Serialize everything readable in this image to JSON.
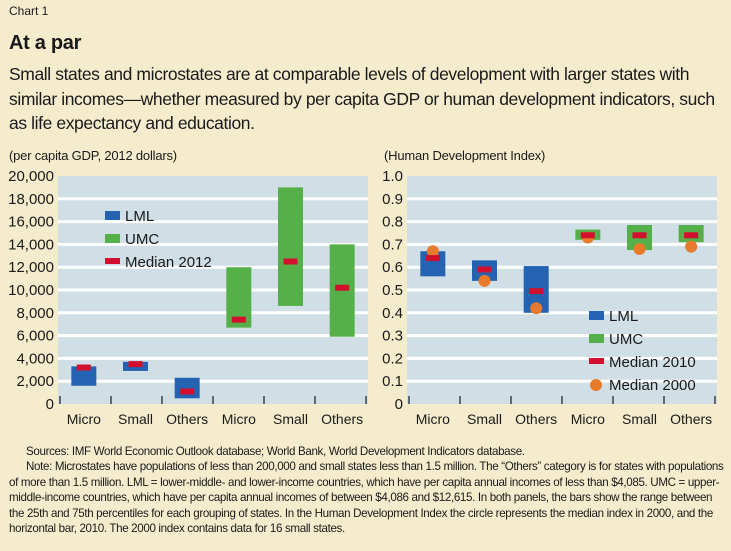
{
  "header": {
    "chart_label": "Chart 1",
    "title": "At a par",
    "subtitle": "Small states and microstates are at comparable levels of development with larger states with similar incomes—whether measured by per capita GDP or human development indicators, such as life expectancy and education."
  },
  "colors": {
    "background": "#f4eccd",
    "plot_bg": "#cfdfe5",
    "gridline": "#ffffff",
    "lml": "#2463b2",
    "umc": "#56b04a",
    "median_bar": "#d2102d",
    "median_dot": "#e87b2b"
  },
  "chart_data": [
    {
      "type": "range-bar",
      "unit_label": "(per capita GDP, 2012 dollars)",
      "ylim": [
        0,
        20000
      ],
      "yticks": [
        0,
        2000,
        4000,
        6000,
        8000,
        10000,
        12000,
        14000,
        16000,
        18000,
        20000
      ],
      "ytick_labels": [
        "0",
        "2,000",
        "4,000",
        "6,000",
        "8,000",
        "10,000",
        "12,000",
        "14,000",
        "16,000",
        "18,000",
        "20,000"
      ],
      "grid": true,
      "categories": [
        "Micro",
        "Small",
        "Others",
        "Micro",
        "Small",
        "Others"
      ],
      "legend_position": "top-left",
      "legend": [
        {
          "key": "lml",
          "label": "LML",
          "shape": "rect"
        },
        {
          "key": "umc",
          "label": "UMC",
          "shape": "rect"
        },
        {
          "key": "median",
          "label": "Median 2012",
          "shape": "bar"
        }
      ],
      "series": [
        {
          "name": "LML",
          "group": "lml",
          "p25": [
            1600,
            2900,
            500
          ],
          "p75": [
            3300,
            3700,
            2300
          ],
          "median": [
            3200,
            3500,
            1100
          ]
        },
        {
          "name": "UMC",
          "group": "umc",
          "p25": [
            6700,
            8600,
            5900
          ],
          "p75": [
            12000,
            19000,
            14000
          ],
          "median": [
            7400,
            12500,
            10200
          ]
        }
      ]
    },
    {
      "type": "range-bar",
      "unit_label": "(Human Development Index)",
      "ylim": [
        0,
        1.0
      ],
      "yticks": [
        0,
        0.1,
        0.2,
        0.3,
        0.4,
        0.5,
        0.6,
        0.7,
        0.8,
        0.9,
        1.0
      ],
      "ytick_labels": [
        "0",
        "0.1",
        "0.2",
        "0.3",
        "0.4",
        "0.5",
        "0.6",
        "0.7",
        "0.8",
        "0.9",
        "1.0"
      ],
      "grid": true,
      "categories": [
        "Micro",
        "Small",
        "Others",
        "Micro",
        "Small",
        "Others"
      ],
      "legend_position": "bottom-right",
      "legend": [
        {
          "key": "lml",
          "label": "LML",
          "shape": "rect"
        },
        {
          "key": "umc",
          "label": "UMC",
          "shape": "rect"
        },
        {
          "key": "median",
          "label": "Median 2010",
          "shape": "bar"
        },
        {
          "key": "median2000",
          "label": "Median 2000",
          "shape": "dot"
        }
      ],
      "series": [
        {
          "name": "LML",
          "group": "lml",
          "p25": [
            0.56,
            0.54,
            0.4
          ],
          "p75": [
            0.67,
            0.63,
            0.605
          ],
          "median": [
            0.64,
            0.59,
            0.495
          ],
          "median2000": [
            0.67,
            0.54,
            0.42
          ]
        },
        {
          "name": "UMC",
          "group": "umc",
          "p25": [
            0.72,
            0.675,
            0.71
          ],
          "p75": [
            0.765,
            0.785,
            0.785
          ],
          "median": [
            0.74,
            0.74,
            0.74
          ],
          "median2000": [
            0.73,
            0.68,
            0.69
          ]
        }
      ]
    }
  ],
  "footnote": {
    "sources": "Sources: IMF World Economic Outlook database; World Bank, World Development Indicators database.",
    "note": "Note: Microstates have populations of less than 200,000 and small states less than 1.5 million. The “Others” category is for states with populations of more than 1.5 million. LML = lower-middle- and lower-income countries, which have per capita annual incomes of less than $4,085. UMC = upper-middle-income countries, which have per capita annual incomes of between $4,086 and $12,615.  In both panels, the bars show the range between the 25th and 75th percentiles for each grouping of states. In the Human Development Index the circle represents the median index in 2000, and the horizontal bar, 2010. The 2000 index contains data for 16 small states."
  }
}
